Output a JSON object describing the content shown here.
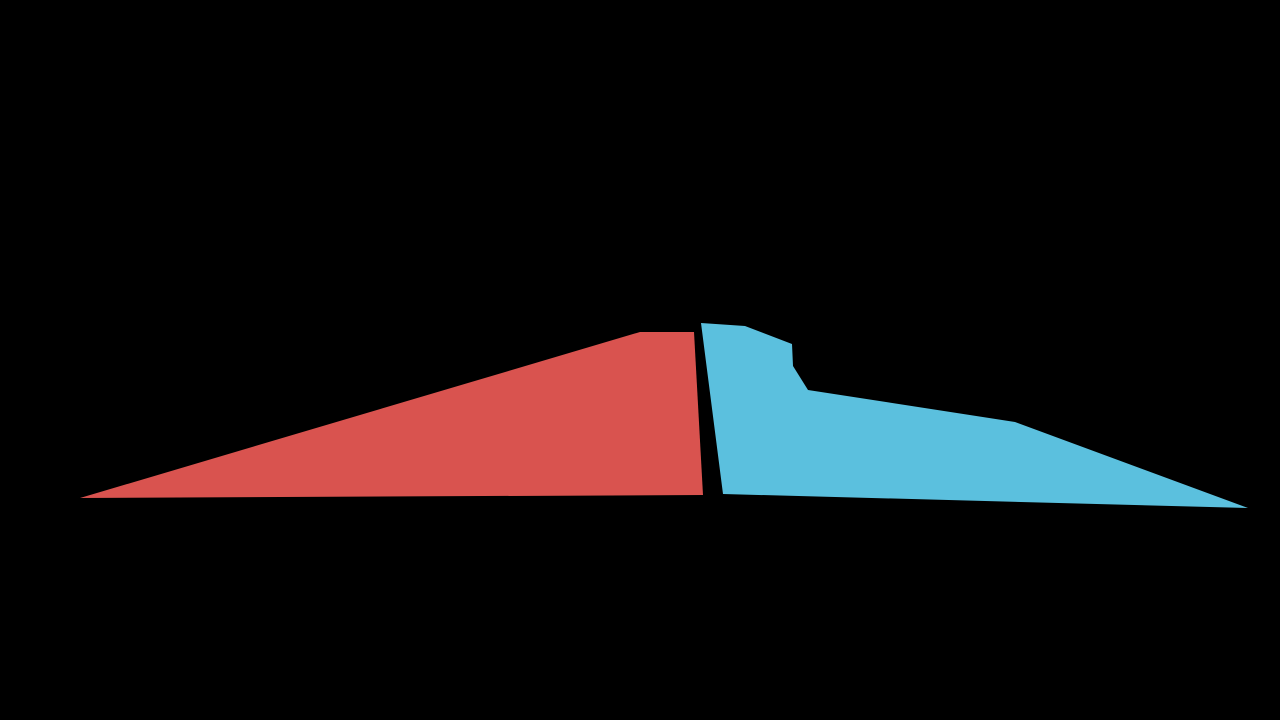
{
  "colors": {
    "background": "#000000",
    "left_shape": "#d9534f",
    "right_shape": "#5bc0de"
  }
}
